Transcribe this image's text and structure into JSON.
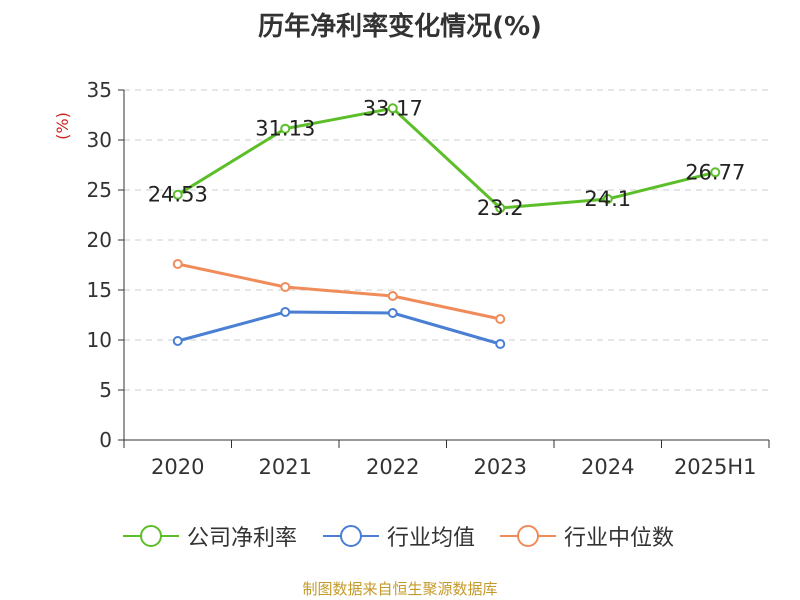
{
  "chart_data": {
    "type": "line",
    "title": "历年净利率变化情况(%)",
    "ylabel": "(%)",
    "xlabel": "",
    "categories": [
      "2020",
      "2021",
      "2022",
      "2023",
      "2024",
      "2025H1"
    ],
    "ylim": [
      0,
      35
    ],
    "yticks": [
      0,
      5,
      10,
      15,
      20,
      25,
      30,
      35
    ],
    "grid": true,
    "legend_position": "bottom",
    "series": [
      {
        "name": "公司净利率",
        "color": "#5cbf2a",
        "values": [
          24.53,
          31.13,
          33.17,
          23.2,
          24.1,
          26.77
        ],
        "labels": [
          "24.53",
          "31.13",
          "33.17",
          "23.2",
          "24.1",
          "26.77"
        ]
      },
      {
        "name": "行业均值",
        "color": "#4a7fd4",
        "values": [
          9.9,
          12.8,
          12.7,
          9.6,
          null,
          null
        ]
      },
      {
        "name": "行业中位数",
        "color": "#f08c5a",
        "values": [
          17.6,
          15.3,
          14.4,
          12.1,
          null,
          null
        ]
      }
    ]
  },
  "source": "制图数据来自恒生聚源数据库"
}
